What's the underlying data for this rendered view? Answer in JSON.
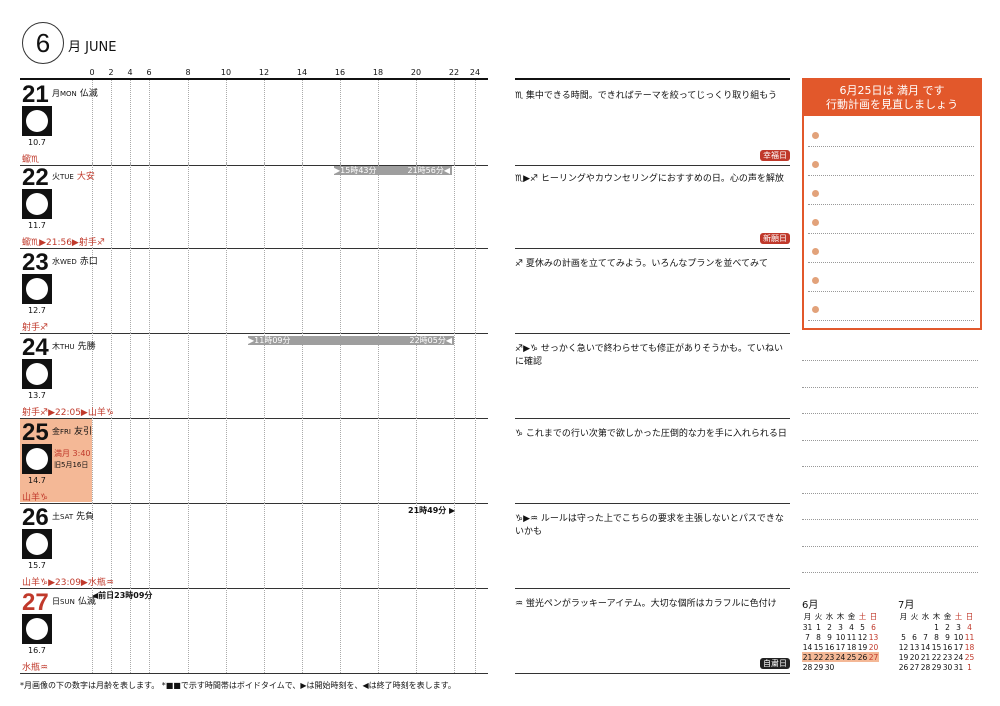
{
  "header": {
    "month_number": "6",
    "month_label": "月 JUNE"
  },
  "hours": [
    "0",
    "2",
    "4",
    "6",
    "8",
    "10",
    "12",
    "14",
    "16",
    "18",
    "20",
    "22",
    "24"
  ],
  "days": [
    {
      "num": "21",
      "kanji": "月",
      "en": "MON",
      "rokuyo": "仏滅",
      "age": "10.7",
      "zodiac": "蠍♏",
      "extra": "",
      "extra2": ""
    },
    {
      "num": "22",
      "kanji": "火",
      "en": "TUE",
      "rokuyo": "大安",
      "age": "11.7",
      "zodiac": "蠍♏▶21:56▶射手♐",
      "extra": "",
      "extra2": ""
    },
    {
      "num": "23",
      "kanji": "水",
      "en": "WED",
      "rokuyo": "赤口",
      "age": "12.7",
      "zodiac": "射手♐",
      "extra": "",
      "extra2": ""
    },
    {
      "num": "24",
      "kanji": "木",
      "en": "THU",
      "rokuyo": "先勝",
      "age": "13.7",
      "zodiac": "射手♐▶22:05▶山羊♑",
      "extra": "",
      "extra2": ""
    },
    {
      "num": "25",
      "kanji": "金",
      "en": "FRI",
      "rokuyo": "友引",
      "age": "14.7",
      "zodiac": "山羊♑",
      "extra": "満月 3:40",
      "extra2": "旧5月16日"
    },
    {
      "num": "26",
      "kanji": "土",
      "en": "SAT",
      "rokuyo": "先負",
      "age": "15.7",
      "zodiac": "山羊♑▶23:09▶水瓶♒",
      "extra": "",
      "extra2": ""
    },
    {
      "num": "27",
      "kanji": "日",
      "en": "SUN",
      "rokuyo": "仏滅",
      "age": "16.7",
      "zodiac": "水瓶♒",
      "extra": "",
      "extra2": ""
    }
  ],
  "void_bars": [
    {
      "start_label": "▶15時43分",
      "end_label": "21時56分◀"
    },
    {
      "start_label": "▶11時09分",
      "end_label": "22時05分◀"
    },
    {
      "start_label": "21時49分 ▶",
      "end_label": ""
    },
    {
      "start_label": "◀前日23時09分",
      "end_label": ""
    }
  ],
  "memos": [
    {
      "text": "♏ 集中できる時間。できればテーマを絞ってじっくり取り組もう",
      "badge": "幸福日"
    },
    {
      "text": "♏▶♐ ヒーリングやカウンセリングにおすすめの日。心の声を解放",
      "badge": "新願日"
    },
    {
      "text": "♐ 夏休みの計画を立ててみよう。いろんなプランを並べてみて",
      "badge": ""
    },
    {
      "text": "♐▶♑ せっかく急いで終わらせても修正がありそうかも。ていねいに確認",
      "badge": ""
    },
    {
      "text": "♑ これまでの行い次第で欲しかった圧倒的な力を手に入れられる日",
      "badge": ""
    },
    {
      "text": "♑▶♒ ルールは守った上でこちらの要求を主張しないとパスできないかも",
      "badge": ""
    },
    {
      "text": "♒ 蛍光ペンがラッキーアイテム。大切な個所はカラフルに色付け",
      "badge": "自粛日"
    }
  ],
  "sidebox": {
    "line1": "6月25日は 満月 です",
    "line2": "行動計画を見直しましょう"
  },
  "cal_june": {
    "title": "6月",
    "dow": [
      "月",
      "火",
      "水",
      "木",
      "金",
      "土",
      "日"
    ],
    "weeks": [
      [
        "31",
        "1",
        "2",
        "3",
        "4",
        "5",
        "6"
      ],
      [
        "7",
        "8",
        "9",
        "10",
        "11",
        "12",
        "13"
      ],
      [
        "14",
        "15",
        "16",
        "17",
        "18",
        "19",
        "20"
      ],
      [
        "21",
        "22",
        "23",
        "24",
        "25",
        "26",
        "27"
      ],
      [
        "28",
        "29",
        "30",
        "",
        "",
        "",
        ""
      ]
    ]
  },
  "cal_july": {
    "title": "7月",
    "dow": [
      "月",
      "火",
      "水",
      "木",
      "金",
      "土",
      "日"
    ],
    "weeks": [
      [
        "",
        "",
        "",
        "1",
        "2",
        "3",
        "4"
      ],
      [
        "5",
        "6",
        "7",
        "8",
        "9",
        "10",
        "11"
      ],
      [
        "12",
        "13",
        "14",
        "15",
        "16",
        "17",
        "18"
      ],
      [
        "19",
        "20",
        "21",
        "22",
        "23",
        "24",
        "25"
      ],
      [
        "26",
        "27",
        "28",
        "29",
        "30",
        "31",
        "1"
      ]
    ]
  },
  "footer": "*月画像の下の数字は月齢を表します。 *■■で示す時間帯はボイドタイムで、▶は開始時刻を、◀は終了時刻を表します。",
  "colors": {
    "accent": "#e2582b",
    "red": "#c0392b",
    "highlight": "#f4b896"
  }
}
